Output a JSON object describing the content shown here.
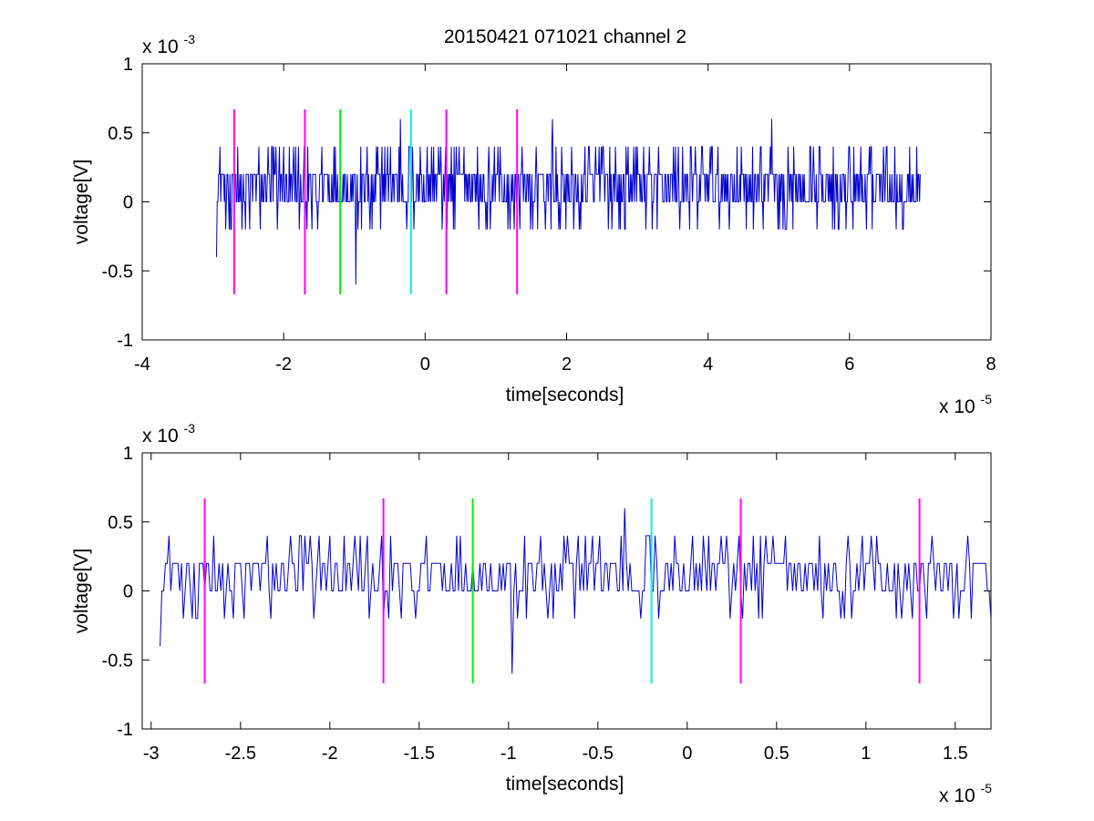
{
  "figure": {
    "title": "20150421 071021 channel 2"
  },
  "colors": {
    "signal": "#0000cc",
    "marker_magenta": "#ff00ff",
    "marker_green": "#00ee00",
    "marker_cyan": "#00eeee",
    "axes": "#000000"
  },
  "chart_data": [
    {
      "type": "line",
      "title": "20150421 071021 channel 2",
      "xlabel": "time[seconds]",
      "ylabel": "voltage[V]",
      "x_multiplier": "x 10",
      "x_exponent": "-5",
      "y_multiplier": "x 10",
      "y_exponent": "-3",
      "xlim": [
        -4e-05,
        8e-05
      ],
      "ylim": [
        -0.001,
        0.001
      ],
      "xticks": [
        -4e-05,
        -2e-05,
        0,
        2e-05,
        4e-05,
        6e-05,
        8e-05
      ],
      "xtick_labels": [
        "-4",
        "-2",
        "0",
        "2",
        "4",
        "6",
        "8"
      ],
      "yticks": [
        -0.001,
        -0.0005,
        0,
        0.0005,
        0.001
      ],
      "ytick_labels": [
        "-1",
        "-0.5",
        "0",
        "0.5",
        "1"
      ],
      "grid": false,
      "series": [
        {
          "signal_range": [
            -2.95e-05,
            7e-05
          ],
          "sample_step": 1e-07,
          "levels": [
            -0.0002,
            0,
            0.0002,
            0.0004
          ],
          "spikes": [
            {
              "x": -2.95e-05,
              "y": -0.0004
            },
            {
              "x": -9.8e-06,
              "y": -0.0006
            },
            {
              "x": -3.5e-06,
              "y": 0.0006
            },
            {
              "x": 1.8e-05,
              "y": 0.0006
            },
            {
              "x": 4.9e-05,
              "y": 0.0006
            }
          ]
        }
      ],
      "markers": [
        {
          "x": -2.7e-05,
          "color": "magenta",
          "y_range": [
            -0.00067,
            0.00067
          ]
        },
        {
          "x": -1.7e-05,
          "color": "magenta",
          "y_range": [
            -0.00067,
            0.00067
          ]
        },
        {
          "x": -1.2e-05,
          "color": "green",
          "y_range": [
            -0.00067,
            0.00067
          ]
        },
        {
          "x": -2e-06,
          "color": "cyan",
          "y_range": [
            -0.00067,
            0.00067
          ]
        },
        {
          "x": 3e-06,
          "color": "magenta",
          "y_range": [
            -0.00067,
            0.00067
          ]
        },
        {
          "x": 1.3e-05,
          "color": "magenta",
          "y_range": [
            -0.00067,
            0.00067
          ]
        }
      ]
    },
    {
      "type": "line",
      "xlabel": "time[seconds]",
      "ylabel": "voltage[V]",
      "x_multiplier": "x 10",
      "x_exponent": "-5",
      "y_multiplier": "x 10",
      "y_exponent": "-3",
      "xlim": [
        -3.05e-05,
        1.7e-05
      ],
      "ylim": [
        -0.001,
        0.001
      ],
      "xticks": [
        -3e-05,
        -2.5e-05,
        -2e-05,
        -1.5e-05,
        -1e-05,
        -5e-06,
        0,
        5e-06,
        1e-05,
        1.5e-05
      ],
      "xtick_labels": [
        "-3",
        "-2.5",
        "-2",
        "-1.5",
        "-1",
        "-0.5",
        "0",
        "0.5",
        "1",
        "1.5"
      ],
      "yticks": [
        -0.001,
        -0.0005,
        0,
        0.0005,
        0.001
      ],
      "ytick_labels": [
        "-1",
        "-0.5",
        "0",
        "0.5",
        "1"
      ],
      "grid": false,
      "series": [
        {
          "signal_range": [
            -2.95e-05,
            1.7e-05
          ],
          "sample_step": 1e-07,
          "levels": [
            -0.0002,
            0,
            0.0002,
            0.0004
          ],
          "spikes": [
            {
              "x": -2.95e-05,
              "y": -0.0004
            },
            {
              "x": -9.8e-06,
              "y": -0.0006
            },
            {
              "x": -3.5e-06,
              "y": 0.0006
            }
          ]
        }
      ],
      "markers": [
        {
          "x": -2.7e-05,
          "color": "magenta",
          "y_range": [
            -0.00067,
            0.00067
          ]
        },
        {
          "x": -1.7e-05,
          "color": "magenta",
          "y_range": [
            -0.00067,
            0.00067
          ]
        },
        {
          "x": -1.2e-05,
          "color": "green",
          "y_range": [
            -0.00067,
            0.00067
          ]
        },
        {
          "x": -2e-06,
          "color": "cyan",
          "y_range": [
            -0.00067,
            0.00067
          ]
        },
        {
          "x": 3e-06,
          "color": "magenta",
          "y_range": [
            -0.00067,
            0.00067
          ]
        },
        {
          "x": 1.3e-05,
          "color": "magenta",
          "y_range": [
            -0.00067,
            0.00067
          ]
        }
      ]
    }
  ]
}
